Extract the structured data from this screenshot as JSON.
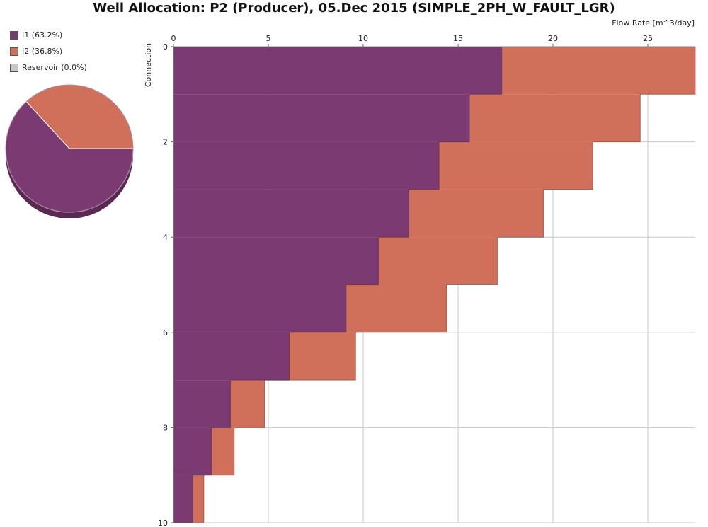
{
  "chart_data": {
    "type": "bar",
    "orientation": "horizontal-step",
    "title": "Well Allocation: P2 (Producer), 05.Dec 2015 (SIMPLE_2PH_W_FAULT_LGR)",
    "xlabel": "Flow Rate [m^3/day]",
    "ylabel": "Connection",
    "xlim": [
      0,
      27.5
    ],
    "ylim": [
      0,
      10
    ],
    "x_ticks": [
      "0",
      "5",
      "10",
      "15",
      "20",
      "25"
    ],
    "y_ticks": [
      "0",
      "2",
      "4",
      "6",
      "8",
      "10"
    ],
    "grid": true,
    "legend_position": "top-left",
    "stacked": true,
    "series": [
      {
        "name": "I1 (63.2%)",
        "color": "#7b3a72",
        "steps": [
          {
            "from": 0,
            "to": 1,
            "value": 17.3
          },
          {
            "from": 1,
            "to": 2,
            "value": 15.6
          },
          {
            "from": 2,
            "to": 3,
            "value": 14.0
          },
          {
            "from": 3,
            "to": 4,
            "value": 12.4
          },
          {
            "from": 4,
            "to": 5,
            "value": 10.8
          },
          {
            "from": 5,
            "to": 6,
            "value": 9.1
          },
          {
            "from": 6,
            "to": 7,
            "value": 6.1
          },
          {
            "from": 7,
            "to": 8,
            "value": 3.0
          },
          {
            "from": 8,
            "to": 9,
            "value": 2.0
          },
          {
            "from": 9,
            "to": 10,
            "value": 1.0
          }
        ]
      },
      {
        "name": "I2 (36.8%)",
        "color": "#d0705a",
        "steps": [
          {
            "from": 0,
            "to": 1,
            "value": 10.2
          },
          {
            "from": 1,
            "to": 2,
            "value": 9.0
          },
          {
            "from": 2,
            "to": 3,
            "value": 8.1
          },
          {
            "from": 3,
            "to": 4,
            "value": 7.1
          },
          {
            "from": 4,
            "to": 5,
            "value": 6.3
          },
          {
            "from": 5,
            "to": 6,
            "value": 5.3
          },
          {
            "from": 6,
            "to": 7,
            "value": 3.5
          },
          {
            "from": 7,
            "to": 8,
            "value": 1.8
          },
          {
            "from": 8,
            "to": 9,
            "value": 1.2
          },
          {
            "from": 9,
            "to": 10,
            "value": 0.6
          }
        ]
      },
      {
        "name": "Reservoir (0.0%)",
        "color": "#c8c8c8",
        "steps": []
      }
    ],
    "pie": [
      {
        "name": "I1",
        "value": 63.2,
        "color": "#7b3a72"
      },
      {
        "name": "I2",
        "value": 36.8,
        "color": "#d0705a"
      },
      {
        "name": "Reservoir",
        "value": 0.0,
        "color": "#c8c8c8"
      }
    ]
  }
}
